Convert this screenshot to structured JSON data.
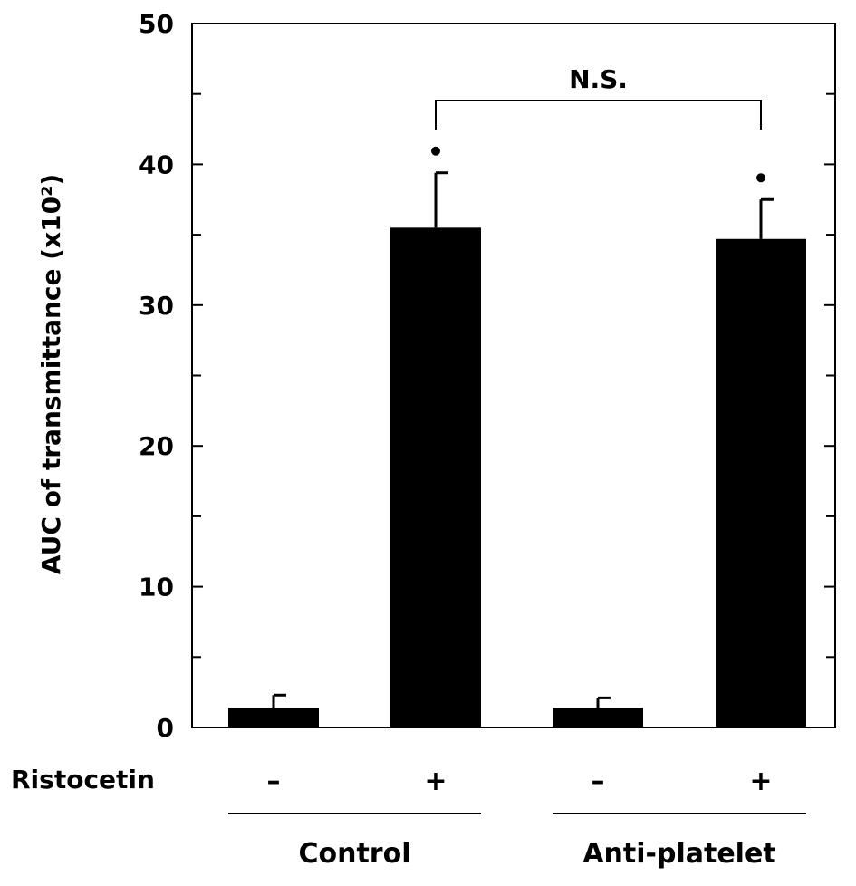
{
  "chart_data": {
    "type": "bar",
    "ylabel": "AUC of transmittance (x10²)",
    "ylim": [
      0,
      50
    ],
    "yticks": [
      "0",
      "10",
      "20",
      "30",
      "40",
      "50"
    ],
    "row_label": "Ristocetin",
    "categories": [
      "–",
      "+",
      "–",
      "+"
    ],
    "groups": [
      {
        "name": "Control",
        "bars": [
          0,
          1
        ]
      },
      {
        "name": "Anti-platelet",
        "bars": [
          2,
          3
        ]
      }
    ],
    "values": [
      1.4,
      35.5,
      1.4,
      34.7
    ],
    "errors": [
      0.9,
      3.9,
      0.7,
      2.8
    ],
    "significance_markers": [
      "",
      "•",
      "",
      "•"
    ],
    "comparison": {
      "from": 1,
      "to": 3,
      "label": "N.S."
    },
    "bar_color": "#000000",
    "grid": false,
    "legend": "none"
  }
}
